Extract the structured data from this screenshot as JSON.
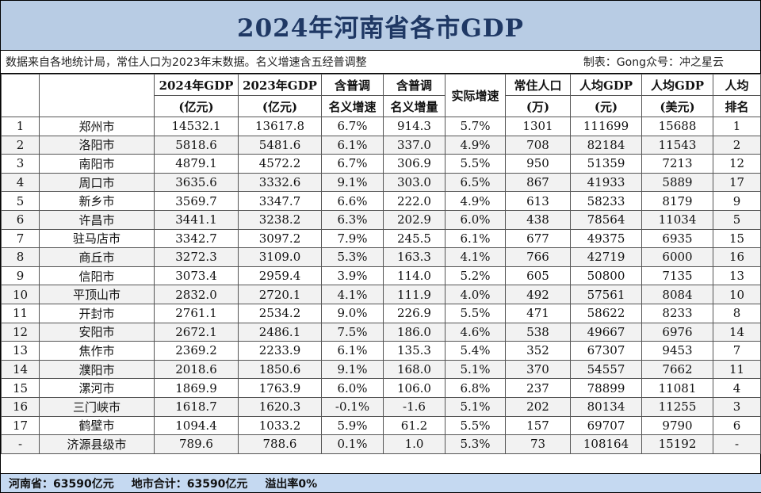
{
  "title": "2024年河南省各市GDP",
  "note": {
    "source": "数据来自各地统计局，常住人口为2023年末数据。名义增速含五经普调整",
    "credit": "制表：Gong众号：冲之星云"
  },
  "headers": [
    [
      "",
      ""
    ],
    [
      "",
      ""
    ],
    [
      "2024年GDP",
      "(亿元)"
    ],
    [
      "2023年GDP",
      "(亿元)"
    ],
    [
      "含普调",
      "名义增速"
    ],
    [
      "含普调",
      "名义增量"
    ],
    [
      "实际增速",
      ""
    ],
    [
      "常住人口",
      "(万)"
    ],
    [
      "人均GDP",
      "(元)"
    ],
    [
      "人均GDP",
      "(美元)"
    ],
    [
      "人均",
      "排名"
    ]
  ],
  "rows": [
    [
      "1",
      "郑州市",
      "14532.1",
      "13617.8",
      "6.7%",
      "914.3",
      "5.7%",
      "1301",
      "111699",
      "15688",
      "1"
    ],
    [
      "2",
      "洛阳市",
      "5818.6",
      "5481.6",
      "6.1%",
      "337.0",
      "4.9%",
      "708",
      "82184",
      "11543",
      "2"
    ],
    [
      "3",
      "南阳市",
      "4879.1",
      "4572.2",
      "6.7%",
      "306.9",
      "5.5%",
      "950",
      "51359",
      "7213",
      "12"
    ],
    [
      "4",
      "周口市",
      "3635.6",
      "3332.6",
      "9.1%",
      "303.0",
      "6.5%",
      "867",
      "41933",
      "5889",
      "17"
    ],
    [
      "5",
      "新乡市",
      "3569.7",
      "3347.7",
      "6.6%",
      "222.0",
      "4.9%",
      "613",
      "58233",
      "8179",
      "9"
    ],
    [
      "6",
      "许昌市",
      "3441.1",
      "3238.2",
      "6.3%",
      "202.9",
      "6.0%",
      "438",
      "78564",
      "11034",
      "5"
    ],
    [
      "7",
      "驻马店市",
      "3342.7",
      "3097.2",
      "7.9%",
      "245.5",
      "6.1%",
      "677",
      "49375",
      "6935",
      "15"
    ],
    [
      "8",
      "商丘市",
      "3272.3",
      "3109.0",
      "5.3%",
      "163.3",
      "4.1%",
      "766",
      "42719",
      "6000",
      "16"
    ],
    [
      "9",
      "信阳市",
      "3073.4",
      "2959.4",
      "3.9%",
      "114.0",
      "5.2%",
      "605",
      "50800",
      "7135",
      "13"
    ],
    [
      "10",
      "平顶山市",
      "2832.0",
      "2720.1",
      "4.1%",
      "111.9",
      "4.0%",
      "492",
      "57561",
      "8084",
      "10"
    ],
    [
      "11",
      "开封市",
      "2761.1",
      "2534.2",
      "9.0%",
      "226.9",
      "5.5%",
      "471",
      "58622",
      "8233",
      "8"
    ],
    [
      "12",
      "安阳市",
      "2672.1",
      "2486.1",
      "7.5%",
      "186.0",
      "4.6%",
      "538",
      "49667",
      "6976",
      "14"
    ],
    [
      "13",
      "焦作市",
      "2369.2",
      "2233.9",
      "6.1%",
      "135.3",
      "5.4%",
      "352",
      "67307",
      "9453",
      "7"
    ],
    [
      "14",
      "濮阳市",
      "2018.6",
      "1850.6",
      "9.1%",
      "168.0",
      "5.1%",
      "370",
      "54557",
      "7662",
      "11"
    ],
    [
      "15",
      "漯河市",
      "1869.9",
      "1763.9",
      "6.0%",
      "106.0",
      "6.8%",
      "237",
      "78899",
      "11081",
      "4"
    ],
    [
      "16",
      "三门峡市",
      "1618.7",
      "1620.3",
      "-0.1%",
      "-1.6",
      "5.1%",
      "202",
      "80134",
      "11255",
      "3"
    ],
    [
      "17",
      "鹤壁市",
      "1094.4",
      "1033.2",
      "5.9%",
      "61.2",
      "5.5%",
      "157",
      "69707",
      "9790",
      "6"
    ],
    [
      "-",
      "济源县级市",
      "789.6",
      "788.6",
      "0.1%",
      "1.0",
      "5.3%",
      "73",
      "108164",
      "15192",
      "-"
    ]
  ],
  "footer": {
    "province_total": "河南省：63590亿元",
    "city_sum": "地市合计：63590亿元",
    "overflow_rate": "溢出率0%"
  }
}
